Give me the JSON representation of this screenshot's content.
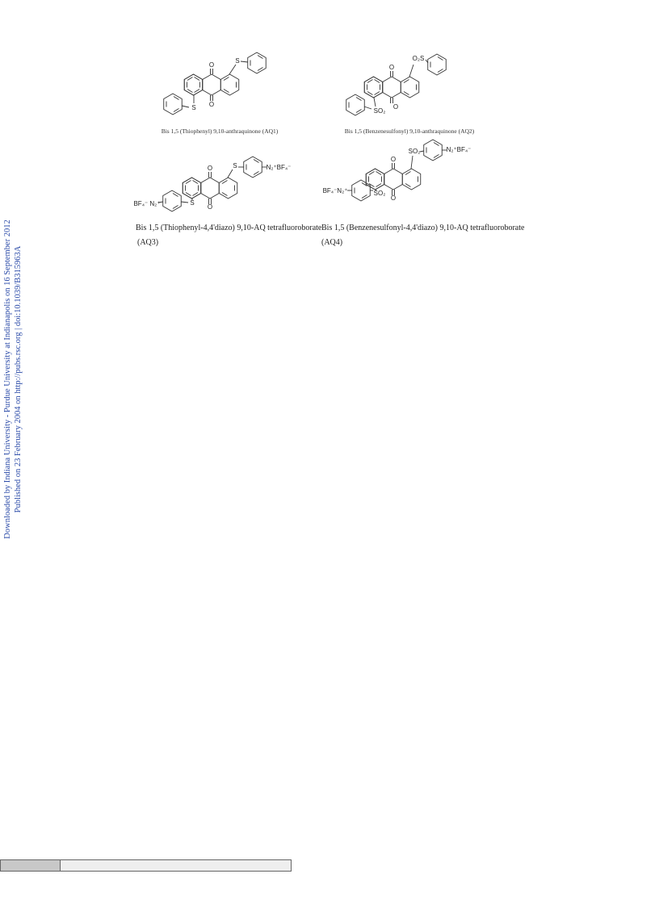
{
  "sidebar": {
    "line1": "Downloaded by Indiana University - Purdue University at Indianapolis on 16 September 2012",
    "line2": "Published on 23 February 2004 on http://pubs.rsc.org | doi:10.1039/B315963A"
  },
  "figures": [
    {
      "labels": [
        "O",
        "S",
        "S",
        "O"
      ],
      "caption": [
        "Bis 1,5 (Thiophenyl) 9,10-anthraquinone  (AQ1)"
      ]
    },
    {
      "labels": [
        "O",
        "O₂S",
        "SO₂",
        "O"
      ],
      "caption": [
        "Bis 1,5 (Benzenesulfonyl) 9,10-anthraquinone  (AQ2)"
      ]
    },
    {
      "labels": [
        "O",
        "S",
        "N₂⁺BF₄⁻",
        "BF₄⁻ N₂⁺",
        "S",
        "O"
      ],
      "caption": [
        "Bis 1,5 (Thiophenyl-4,4'diazo) 9,10-AQ tetrafluoroborate",
        "(AQ3)"
      ]
    },
    {
      "labels": [
        "SO₂",
        "N₂⁺BF₄⁻",
        "O",
        "BF₄⁻N₂⁺",
        "SO₂",
        "O"
      ],
      "caption": [
        "Bis 1,5 (Benzenesulfonyl-4,4'diazo) 9,10-AQ tetrafluoroborate",
        "(AQ4)"
      ]
    }
  ]
}
